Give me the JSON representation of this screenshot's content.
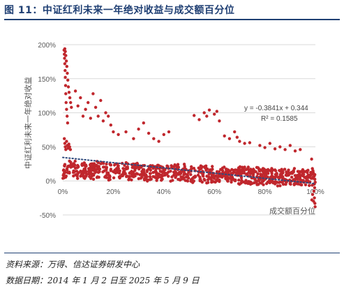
{
  "figure": {
    "title": "图 11：中证红利未来一年绝对收益与成交额百分位",
    "source": "资料来源：万得、信达证券研发中心",
    "date_range": "数据日期：2014 年 1 月 2 日至 2025 年 5 月 9 日"
  },
  "chart_data": {
    "type": "scatter",
    "xlabel": "成交额百分位",
    "ylabel": "中证红利未来一年绝对收益",
    "xlim": [
      0,
      1
    ],
    "ylim": [
      -0.5,
      2.0
    ],
    "x_ticks": [
      0,
      0.2,
      0.4,
      0.6,
      0.8,
      1.0
    ],
    "x_tick_labels": [
      "0%",
      "20%",
      "40%",
      "60%",
      "80%",
      "100%"
    ],
    "y_ticks": [
      -0.5,
      0,
      0.5,
      1.0,
      1.5,
      2.0
    ],
    "y_tick_labels": [
      "-50%",
      "0%",
      "50%",
      "100%",
      "150%",
      "200%"
    ],
    "grid": "horizontal",
    "point_color": "#c0272d",
    "trendline": {
      "slope": -0.3841,
      "intercept": 0.344,
      "color": "#2e4a7d",
      "style": "dotted"
    },
    "annotation": {
      "equation": "y = -0.3841x + 0.344",
      "r_squared": "R² = 0.1585"
    },
    "series": [
      {
        "points": [
          [
            0.005,
            1.92
          ],
          [
            0.006,
            1.86
          ],
          [
            0.007,
            1.8
          ],
          [
            0.008,
            1.72
          ],
          [
            0.009,
            1.62
          ],
          [
            0.01,
            1.52
          ],
          [
            0.011,
            1.4
          ],
          [
            0.012,
            1.28
          ],
          [
            0.013,
            1.15
          ],
          [
            0.015,
            1.05
          ],
          [
            0.017,
            0.95
          ],
          [
            0.019,
            0.85
          ],
          [
            0.008,
            1.94
          ],
          [
            0.01,
            1.9
          ],
          [
            0.012,
            1.84
          ],
          [
            0.014,
            1.76
          ],
          [
            0.016,
            1.68
          ],
          [
            0.018,
            1.58
          ],
          [
            0.02,
            1.48
          ],
          [
            0.022,
            1.38
          ],
          [
            0.025,
            1.3
          ],
          [
            0.028,
            1.22
          ],
          [
            0.031,
            1.15
          ],
          [
            0.034,
            1.08
          ],
          [
            0.006,
            0.62
          ],
          [
            0.008,
            0.55
          ],
          [
            0.01,
            0.5
          ],
          [
            0.012,
            0.46
          ],
          [
            0.015,
            0.58
          ],
          [
            0.018,
            0.52
          ],
          [
            0.021,
            0.48
          ],
          [
            0.024,
            0.54
          ],
          [
            0.027,
            0.5
          ],
          [
            0.03,
            0.46
          ],
          [
            0.05,
            1.32
          ],
          [
            0.07,
            1.22
          ],
          [
            0.09,
            1.05
          ],
          [
            0.11,
            0.92
          ],
          [
            0.13,
            1.08
          ],
          [
            0.15,
            1.18
          ],
          [
            0.17,
            1.0
          ],
          [
            0.19,
            0.82
          ],
          [
            0.2,
            0.72
          ],
          [
            0.06,
            1.1
          ],
          [
            0.08,
            0.95
          ],
          [
            0.1,
            1.15
          ],
          [
            0.12,
            1.28
          ],
          [
            0.14,
            0.95
          ],
          [
            0.16,
            0.88
          ],
          [
            0.18,
            0.95
          ],
          [
            0.22,
            0.68
          ],
          [
            0.25,
            0.72
          ],
          [
            0.28,
            0.62
          ],
          [
            0.3,
            0.76
          ],
          [
            0.32,
            0.85
          ],
          [
            0.34,
            0.7
          ],
          [
            0.36,
            0.62
          ],
          [
            0.38,
            0.58
          ],
          [
            0.4,
            0.68
          ],
          [
            0.42,
            0.72
          ],
          [
            0.54,
            0.9
          ],
          [
            0.56,
            1.0
          ],
          [
            0.58,
            1.04
          ],
          [
            0.6,
            0.98
          ],
          [
            0.62,
            0.88
          ],
          [
            0.52,
            0.96
          ],
          [
            0.57,
            0.95
          ],
          [
            0.61,
            1.02
          ],
          [
            0.66,
            0.62
          ],
          [
            0.68,
            0.72
          ],
          [
            0.7,
            0.58
          ],
          [
            0.72,
            0.55
          ],
          [
            0.64,
            0.66
          ],
          [
            0.69,
            0.64
          ],
          [
            0.74,
            0.56
          ],
          [
            0.78,
            0.52
          ],
          [
            0.82,
            0.55
          ],
          [
            0.86,
            0.5
          ],
          [
            0.88,
            0.46
          ],
          [
            0.9,
            0.52
          ],
          [
            0.92,
            0.44
          ],
          [
            0.94,
            0.46
          ],
          [
            0.84,
            0.47
          ],
          [
            0.8,
            0.49
          ],
          [
            0.985,
            0.32
          ],
          [
            0.988,
            0.18
          ],
          [
            0.99,
            0.05
          ],
          [
            0.992,
            -0.05
          ],
          [
            0.994,
            -0.15
          ],
          [
            0.996,
            -0.25
          ],
          [
            0.998,
            -0.33
          ],
          [
            0.989,
            -0.2
          ],
          [
            0.993,
            -0.3
          ],
          [
            0.997,
            -0.1
          ],
          [
            0.986,
            -0.28
          ],
          [
            0.999,
            -0.38
          ]
        ]
      }
    ]
  }
}
